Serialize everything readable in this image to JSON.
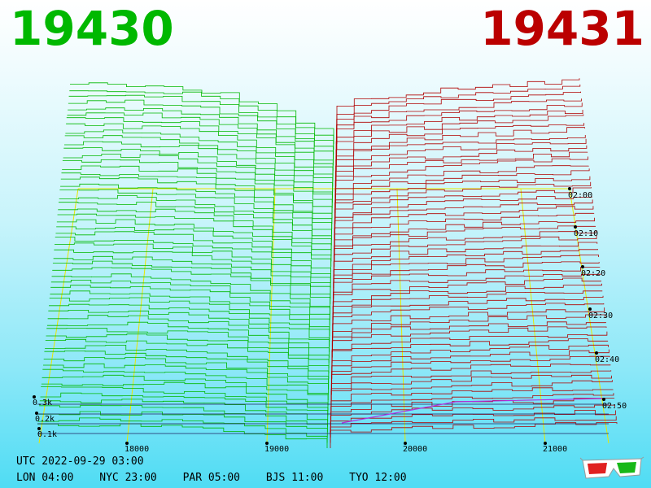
{
  "header": {
    "bid_label": "19430",
    "ask_label": "19431",
    "bid_color": "#00b800",
    "ask_color": "#bb0000"
  },
  "footer": {
    "utc": "UTC 2022-09-29 03:00",
    "zones": [
      "LON 04:00",
      "NYC 23:00",
      "PAR 05:00",
      "BJS 11:00",
      "TYO 12:00"
    ]
  },
  "icons": {
    "glasses": "3d-glasses-icon"
  },
  "chart_data": {
    "type": "area",
    "x_ticks": [
      "18000",
      "19000",
      "20000",
      "21000"
    ],
    "y_ticks": [
      "0.3k",
      "0.2k",
      "0.1k"
    ],
    "time_ticks": [
      "02:00",
      "02:10",
      "02:20",
      "02:30",
      "02:40",
      "02:50"
    ],
    "bid_color": "#00b800",
    "ask_color": "#b00000",
    "grid_color": "#e8e800"
  }
}
